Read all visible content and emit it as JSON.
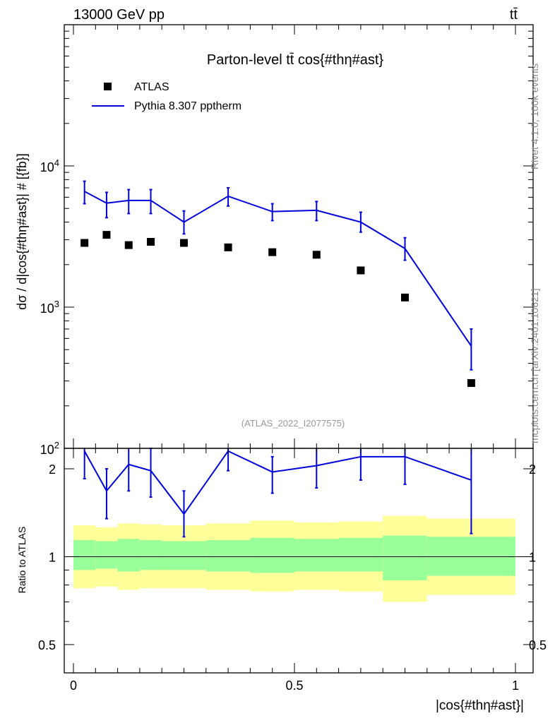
{
  "header": {
    "energy_label": "13000 GeV pp",
    "process_label": "tt̄"
  },
  "side_labels": {
    "rivet": "Rivet 4.1.0,  100k events",
    "source": "mcplots.cern.ch [arXiv:2401.10621]"
  },
  "colors": {
    "mc_line": "#0000dd",
    "data_marker": "#000000",
    "band_inner": "#99ff99",
    "band_outer": "#ffff99"
  },
  "chart_data": {
    "type": "line",
    "title": "Parton-level tt̄ cos{#thη#ast}",
    "analysis_tag": "(ATLAS_2022_I2077575)",
    "ylabel": "dσ / d|cos{#thη#ast}| # [{fb}]",
    "xlabel": "|cos{#thη#ast}|",
    "ratio_ylabel": "Ratio to ATLAS",
    "xlim": [
      0,
      1
    ],
    "ylim": [
      100,
      100000
    ],
    "yscale": "log",
    "ratio_ylim": [
      0.4,
      2.35
    ],
    "x_ticks": [
      {
        "value": 0,
        "label": "0"
      },
      {
        "value": 0.5,
        "label": "0.5"
      },
      {
        "value": 1,
        "label": "1"
      }
    ],
    "y_ticks": [
      {
        "value": 100,
        "base": "10",
        "exp": "2"
      },
      {
        "value": 1000,
        "base": "10",
        "exp": "3"
      },
      {
        "value": 10000,
        "base": "10",
        "exp": "4"
      }
    ],
    "ratio_ticks": [
      {
        "value": 0.5,
        "label": "0.5"
      },
      {
        "value": 1,
        "label": "1"
      },
      {
        "value": 2,
        "label": "2"
      }
    ],
    "legend": [
      {
        "name": "ATLAS",
        "style": "marker"
      },
      {
        "name": "Pythia 8.307 pptherm",
        "style": "line"
      }
    ],
    "bins": [
      {
        "lo": 0.0,
        "hi": 0.05,
        "x": 0.025
      },
      {
        "lo": 0.05,
        "hi": 0.1,
        "x": 0.075
      },
      {
        "lo": 0.1,
        "hi": 0.15,
        "x": 0.125
      },
      {
        "lo": 0.15,
        "hi": 0.2,
        "x": 0.175
      },
      {
        "lo": 0.2,
        "hi": 0.3,
        "x": 0.25
      },
      {
        "lo": 0.3,
        "hi": 0.4,
        "x": 0.35
      },
      {
        "lo": 0.4,
        "hi": 0.5,
        "x": 0.45
      },
      {
        "lo": 0.5,
        "hi": 0.6,
        "x": 0.55
      },
      {
        "lo": 0.6,
        "hi": 0.7,
        "x": 0.65
      },
      {
        "lo": 0.7,
        "hi": 0.8,
        "x": 0.75
      },
      {
        "lo": 0.8,
        "hi": 1.0,
        "x": 0.9
      }
    ],
    "series": [
      {
        "name": "ATLAS",
        "values": [
          2850,
          3250,
          2750,
          2900,
          2850,
          2650,
          2450,
          2350,
          1820,
          1170,
          290
        ]
      },
      {
        "name": "Pythia 8.307 pptherm",
        "values": [
          6600,
          5450,
          5700,
          5700,
          4000,
          6100,
          4750,
          4850,
          4000,
          2600,
          530
        ],
        "err_up": [
          7800,
          6500,
          6800,
          6800,
          4800,
          7000,
          5400,
          5600,
          4700,
          3100,
          700
        ],
        "err_down": [
          5400,
          4300,
          4600,
          4600,
          3300,
          5200,
          4100,
          4100,
          3400,
          2150,
          360
        ]
      }
    ],
    "ratio": {
      "values": [
        2.3,
        1.68,
        2.07,
        1.97,
        1.4,
        2.3,
        1.95,
        2.05,
        2.2,
        2.2,
        1.83
      ],
      "err_up": [
        2.75,
        2.0,
        2.5,
        2.35,
        1.68,
        2.65,
        2.2,
        2.4,
        2.7,
        2.65,
        2.55
      ],
      "err_down": [
        1.85,
        1.35,
        1.68,
        1.6,
        1.17,
        1.97,
        1.65,
        1.72,
        1.83,
        1.77,
        1.2
      ],
      "band_inner": [
        [
          0.9,
          1.14
        ],
        [
          0.91,
          1.13
        ],
        [
          0.89,
          1.15
        ],
        [
          0.9,
          1.14
        ],
        [
          0.9,
          1.13
        ],
        [
          0.89,
          1.14
        ],
        [
          0.88,
          1.16
        ],
        [
          0.89,
          1.15
        ],
        [
          0.89,
          1.16
        ],
        [
          0.83,
          1.18
        ],
        [
          0.86,
          1.17
        ]
      ],
      "band_outer": [
        [
          0.78,
          1.28
        ],
        [
          0.79,
          1.26
        ],
        [
          0.77,
          1.3
        ],
        [
          0.78,
          1.29
        ],
        [
          0.78,
          1.28
        ],
        [
          0.77,
          1.3
        ],
        [
          0.76,
          1.33
        ],
        [
          0.77,
          1.31
        ],
        [
          0.76,
          1.32
        ],
        [
          0.7,
          1.38
        ],
        [
          0.74,
          1.35
        ]
      ]
    }
  }
}
